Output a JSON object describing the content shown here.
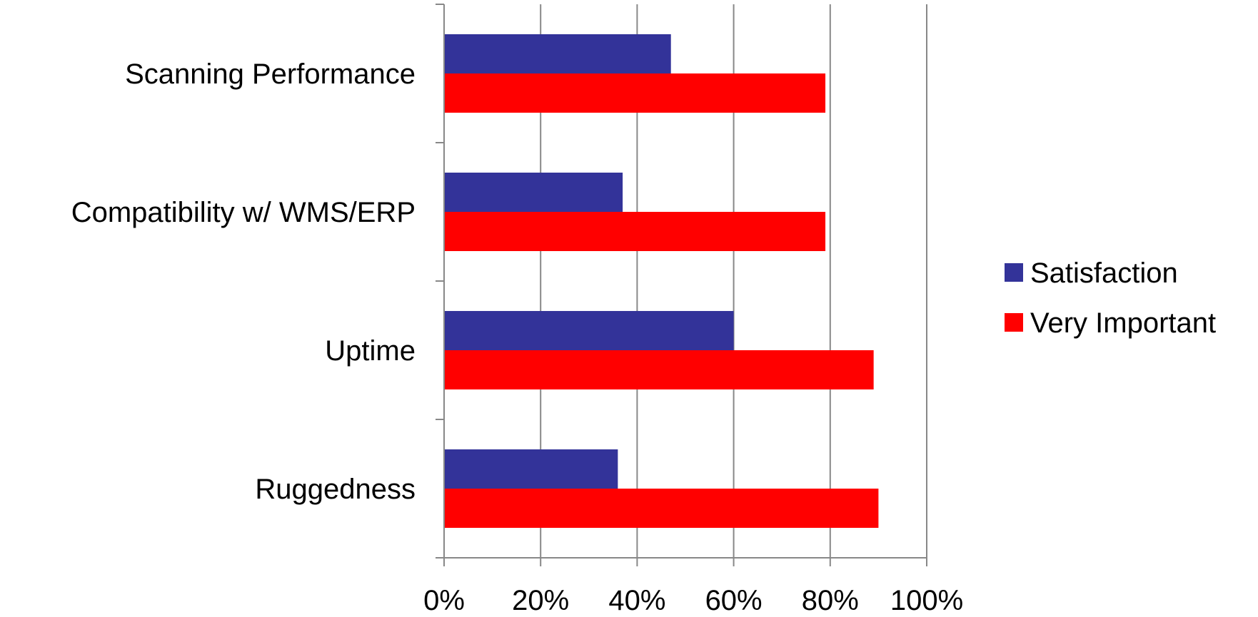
{
  "chart_data": {
    "type": "bar",
    "orientation": "horizontal",
    "categories": [
      "Scanning Performance",
      "Compatibility w/ WMS/ERP",
      "Uptime",
      "Ruggedness"
    ],
    "series": [
      {
        "name": "Satisfaction",
        "values": [
          47,
          37,
          60,
          36
        ],
        "color": "#333399"
      },
      {
        "name": "Very Important",
        "values": [
          79,
          79,
          89,
          90
        ],
        "color": "#ff0000"
      }
    ],
    "xlim": [
      0,
      100
    ],
    "x_ticks": [
      0,
      20,
      40,
      60,
      80,
      100
    ],
    "x_tick_labels": [
      "0%",
      "20%",
      "40%",
      "60%",
      "80%",
      "100%"
    ],
    "grid": {
      "vertical": true,
      "color": "#888888"
    },
    "legend": {
      "position": "right"
    }
  }
}
